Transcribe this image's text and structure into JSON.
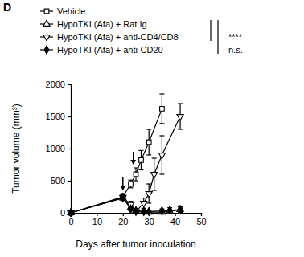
{
  "chart_data": {
    "type": "line",
    "panel_label": "D",
    "x_label": "Days after tumor inoculation",
    "y_label": "Tumor volume (mm³)",
    "xlim": [
      0,
      50
    ],
    "xticks": [
      0,
      10,
      20,
      30,
      40,
      50
    ],
    "ylim": [
      0,
      2000
    ],
    "yticks": [
      0,
      500,
      1000,
      1500,
      2000
    ],
    "legend": "top-left",
    "treatment_days": [
      20,
      24
    ],
    "series": [
      {
        "name": "Vehicle",
        "color": "#000000",
        "marker": "square-open",
        "x": [
          0,
          20,
          23,
          25,
          27,
          30,
          35
        ],
        "values": [
          0,
          250,
          450,
          600,
          820,
          1100,
          1620
        ],
        "errors": [
          0,
          50,
          60,
          100,
          150,
          200,
          230
        ]
      },
      {
        "name": "HypoTKI (Afa) + Rat Ig",
        "color": "#000000",
        "marker": "triangle-up-open",
        "x": [
          0,
          20,
          23,
          25,
          28,
          30,
          35,
          38,
          42
        ],
        "values": [
          0,
          230,
          80,
          30,
          20,
          10,
          10,
          20,
          50
        ],
        "errors": [
          0,
          40,
          30,
          15,
          15,
          10,
          10,
          20,
          40
        ]
      },
      {
        "name": "HypoTKI (Afa) + anti-CD4/CD8",
        "color": "#000000",
        "marker": "triangle-down-open",
        "x": [
          0,
          20,
          23,
          25,
          28,
          30,
          32,
          35,
          42
        ],
        "values": [
          0,
          240,
          130,
          20,
          150,
          300,
          600,
          900,
          1500
        ],
        "errors": [
          0,
          40,
          50,
          20,
          80,
          150,
          250,
          300,
          200
        ]
      },
      {
        "name": "HypoTKI (Afa) + anti-CD20",
        "color": "#000000",
        "marker": "diamond",
        "x": [
          0,
          20,
          23,
          25,
          28,
          30,
          35,
          38,
          42
        ],
        "values": [
          0,
          240,
          60,
          30,
          20,
          20,
          30,
          40,
          50
        ],
        "errors": [
          0,
          40,
          30,
          20,
          20,
          20,
          30,
          40,
          40
        ]
      }
    ],
    "annotations": [
      {
        "text": "****",
        "series": [
          1,
          2
        ]
      },
      {
        "text": "n.s.",
        "series": [
          1,
          3
        ]
      }
    ]
  }
}
